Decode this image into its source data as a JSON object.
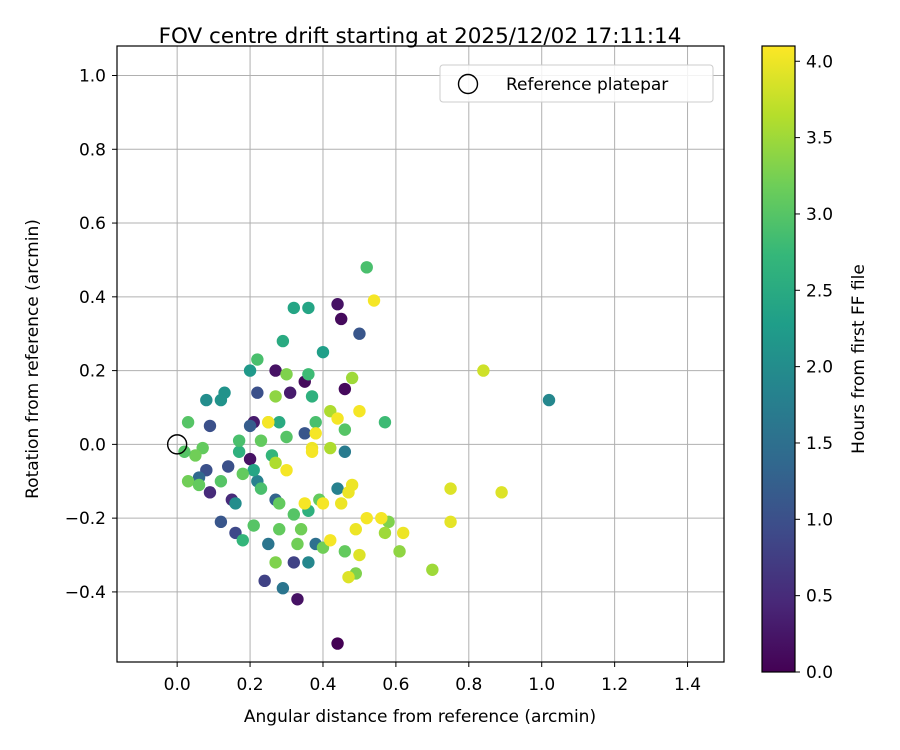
{
  "chart_data": {
    "type": "scatter",
    "title": "FOV centre drift starting at 2025/12/02 17:11:14",
    "xlabel": "Angular distance from reference (arcmin)",
    "ylabel": "Rotation from reference (arcmin)",
    "xlim": [
      -0.165,
      1.5
    ],
    "ylim": [
      -0.59,
      1.08
    ],
    "xticks": [
      0.0,
      0.2,
      0.4,
      0.6,
      0.8,
      1.0,
      1.2,
      1.4
    ],
    "yticks": [
      -0.4,
      -0.2,
      0.0,
      0.2,
      0.4,
      0.6,
      0.8,
      1.0
    ],
    "xtick_labels": [
      "0.0",
      "0.2",
      "0.4",
      "0.6",
      "0.8",
      "1.0",
      "1.2",
      "1.4"
    ],
    "ytick_labels": [
      "−0.4",
      "−0.2",
      "0.0",
      "0.2",
      "0.4",
      "0.6",
      "0.8",
      "1.0"
    ],
    "grid": true,
    "legend": {
      "position": "top-right",
      "entries": [
        "Reference platepar"
      ]
    },
    "reference_point": {
      "x": 0.0,
      "y": 0.0
    },
    "colorbar": {
      "label": "Hours from first FF file",
      "colormap": "viridis",
      "range": [
        0.0,
        4.1
      ],
      "ticks": [
        0.0,
        0.5,
        1.0,
        1.5,
        2.0,
        2.5,
        3.0,
        3.5,
        4.0
      ],
      "tick_labels": [
        "0.0",
        "0.5",
        "1.0",
        "1.5",
        "2.0",
        "2.5",
        "3.0",
        "3.5",
        "4.0"
      ],
      "stops": [
        "#440154",
        "#482878",
        "#3e4a89",
        "#31688e",
        "#26828e",
        "#1f9e89",
        "#35b779",
        "#6ece58",
        "#b5de2b",
        "#fde725"
      ]
    },
    "points": [
      {
        "x": 0.44,
        "y": -0.54,
        "t": 0.0
      },
      {
        "x": 0.33,
        "y": -0.42,
        "t": 0.2
      },
      {
        "x": 0.44,
        "y": 0.38,
        "t": 0.2
      },
      {
        "x": 0.45,
        "y": 0.34,
        "t": 0.1
      },
      {
        "x": 0.35,
        "y": 0.17,
        "t": 0.1
      },
      {
        "x": 0.46,
        "y": 0.15,
        "t": 0.1
      },
      {
        "x": 0.31,
        "y": 0.14,
        "t": 0.3
      },
      {
        "x": 0.27,
        "y": 0.2,
        "t": 0.2
      },
      {
        "x": 0.21,
        "y": 0.06,
        "t": 0.3
      },
      {
        "x": 0.2,
        "y": -0.04,
        "t": 0.2
      },
      {
        "x": 0.15,
        "y": -0.15,
        "t": 0.5
      },
      {
        "x": 0.09,
        "y": -0.13,
        "t": 0.5
      },
      {
        "x": 0.32,
        "y": -0.32,
        "t": 0.8
      },
      {
        "x": 0.24,
        "y": -0.37,
        "t": 0.8
      },
      {
        "x": 0.16,
        "y": -0.24,
        "t": 0.9
      },
      {
        "x": 0.12,
        "y": -0.21,
        "t": 1.1
      },
      {
        "x": 0.5,
        "y": 0.3,
        "t": 1.1
      },
      {
        "x": 0.22,
        "y": 0.14,
        "t": 1.0
      },
      {
        "x": 0.09,
        "y": 0.05,
        "t": 1.0
      },
      {
        "x": 0.08,
        "y": -0.07,
        "t": 1.0
      },
      {
        "x": 0.14,
        "y": -0.06,
        "t": 1.0
      },
      {
        "x": 0.2,
        "y": 0.05,
        "t": 1.2
      },
      {
        "x": 0.35,
        "y": 0.03,
        "t": 1.1
      },
      {
        "x": 0.27,
        "y": -0.15,
        "t": 1.3
      },
      {
        "x": 0.06,
        "y": -0.09,
        "t": 1.4
      },
      {
        "x": 0.25,
        "y": -0.27,
        "t": 1.6
      },
      {
        "x": 0.29,
        "y": -0.39,
        "t": 1.6
      },
      {
        "x": 0.38,
        "y": -0.27,
        "t": 1.5
      },
      {
        "x": 0.46,
        "y": -0.02,
        "t": 1.7
      },
      {
        "x": 0.44,
        "y": -0.12,
        "t": 1.8
      },
      {
        "x": 1.02,
        "y": 0.12,
        "t": 1.9
      },
      {
        "x": 0.36,
        "y": -0.32,
        "t": 1.9
      },
      {
        "x": 0.22,
        "y": -0.1,
        "t": 1.8
      },
      {
        "x": 0.16,
        "y": -0.16,
        "t": 2.0
      },
      {
        "x": 0.08,
        "y": 0.12,
        "t": 2.0
      },
      {
        "x": 0.13,
        "y": 0.14,
        "t": 2.1
      },
      {
        "x": 0.2,
        "y": 0.2,
        "t": 2.2
      },
      {
        "x": 0.12,
        "y": 0.12,
        "t": 2.1
      },
      {
        "x": 0.32,
        "y": 0.37,
        "t": 2.4
      },
      {
        "x": 0.36,
        "y": 0.37,
        "t": 2.4
      },
      {
        "x": 0.4,
        "y": 0.25,
        "t": 2.3
      },
      {
        "x": 0.29,
        "y": 0.28,
        "t": 2.5
      },
      {
        "x": 0.37,
        "y": 0.13,
        "t": 2.6
      },
      {
        "x": 0.28,
        "y": 0.06,
        "t": 2.5
      },
      {
        "x": 0.21,
        "y": -0.07,
        "t": 2.4
      },
      {
        "x": 0.17,
        "y": -0.02,
        "t": 2.6
      },
      {
        "x": 0.26,
        "y": -0.03,
        "t": 2.7
      },
      {
        "x": 0.36,
        "y": -0.18,
        "t": 2.6
      },
      {
        "x": 0.18,
        "y": -0.26,
        "t": 2.7
      },
      {
        "x": 0.57,
        "y": 0.06,
        "t": 2.8
      },
      {
        "x": 0.52,
        "y": 0.48,
        "t": 2.9
      },
      {
        "x": 0.22,
        "y": 0.23,
        "t": 2.9
      },
      {
        "x": 0.36,
        "y": 0.19,
        "t": 2.8
      },
      {
        "x": 0.38,
        "y": 0.06,
        "t": 2.9
      },
      {
        "x": 0.46,
        "y": 0.04,
        "t": 3.0
      },
      {
        "x": 0.3,
        "y": 0.02,
        "t": 3.0
      },
      {
        "x": 0.23,
        "y": 0.01,
        "t": 3.1
      },
      {
        "x": 0.17,
        "y": 0.01,
        "t": 2.9
      },
      {
        "x": 0.03,
        "y": 0.06,
        "t": 3.0
      },
      {
        "x": 0.07,
        "y": -0.01,
        "t": 3.1
      },
      {
        "x": 0.05,
        "y": -0.03,
        "t": 3.2
      },
      {
        "x": 0.02,
        "y": -0.02,
        "t": 3.0
      },
      {
        "x": 0.03,
        "y": -0.1,
        "t": 3.2
      },
      {
        "x": 0.06,
        "y": -0.11,
        "t": 3.1
      },
      {
        "x": 0.12,
        "y": -0.1,
        "t": 3.0
      },
      {
        "x": 0.18,
        "y": -0.08,
        "t": 3.1
      },
      {
        "x": 0.23,
        "y": -0.12,
        "t": 2.9
      },
      {
        "x": 0.28,
        "y": -0.16,
        "t": 3.1
      },
      {
        "x": 0.32,
        "y": -0.19,
        "t": 3.0
      },
      {
        "x": 0.39,
        "y": -0.15,
        "t": 3.1
      },
      {
        "x": 0.21,
        "y": -0.22,
        "t": 3.0
      },
      {
        "x": 0.28,
        "y": -0.23,
        "t": 3.1
      },
      {
        "x": 0.34,
        "y": -0.23,
        "t": 3.2
      },
      {
        "x": 0.33,
        "y": -0.27,
        "t": 3.2
      },
      {
        "x": 0.27,
        "y": -0.32,
        "t": 3.3
      },
      {
        "x": 0.4,
        "y": -0.28,
        "t": 3.2
      },
      {
        "x": 0.46,
        "y": -0.29,
        "t": 3.1
      },
      {
        "x": 0.49,
        "y": -0.35,
        "t": 3.3
      },
      {
        "x": 0.58,
        "y": -0.21,
        "t": 3.3
      },
      {
        "x": 0.61,
        "y": -0.29,
        "t": 3.4
      },
      {
        "x": 0.57,
        "y": -0.24,
        "t": 3.5
      },
      {
        "x": 0.7,
        "y": -0.34,
        "t": 3.5
      },
      {
        "x": 0.48,
        "y": 0.18,
        "t": 3.5
      },
      {
        "x": 0.42,
        "y": 0.09,
        "t": 3.6
      },
      {
        "x": 0.42,
        "y": -0.01,
        "t": 3.6
      },
      {
        "x": 0.27,
        "y": -0.05,
        "t": 3.6
      },
      {
        "x": 0.27,
        "y": 0.13,
        "t": 3.4
      },
      {
        "x": 0.3,
        "y": 0.19,
        "t": 3.3
      },
      {
        "x": 0.25,
        "y": 0.06,
        "t": 3.4
      },
      {
        "x": 0.84,
        "y": 0.2,
        "t": 3.8
      },
      {
        "x": 0.89,
        "y": -0.13,
        "t": 3.9
      },
      {
        "x": 0.75,
        "y": -0.12,
        "t": 3.9
      },
      {
        "x": 0.47,
        "y": -0.36,
        "t": 3.9
      },
      {
        "x": 0.54,
        "y": 0.39,
        "t": 4.05
      },
      {
        "x": 0.5,
        "y": 0.09,
        "t": 4.05
      },
      {
        "x": 0.44,
        "y": 0.07,
        "t": 4.05
      },
      {
        "x": 0.38,
        "y": 0.03,
        "t": 4.05
      },
      {
        "x": 0.37,
        "y": -0.01,
        "t": 4.0
      },
      {
        "x": 0.37,
        "y": -0.02,
        "t": 4.05
      },
      {
        "x": 0.25,
        "y": 0.06,
        "t": 4.05
      },
      {
        "x": 0.3,
        "y": -0.07,
        "t": 4.05
      },
      {
        "x": 0.35,
        "y": -0.16,
        "t": 4.05
      },
      {
        "x": 0.4,
        "y": -0.16,
        "t": 4.05
      },
      {
        "x": 0.45,
        "y": -0.16,
        "t": 4.0
      },
      {
        "x": 0.48,
        "y": -0.11,
        "t": 4.0
      },
      {
        "x": 0.47,
        "y": -0.13,
        "t": 4.0
      },
      {
        "x": 0.52,
        "y": -0.2,
        "t": 4.05
      },
      {
        "x": 0.56,
        "y": -0.2,
        "t": 4.05
      },
      {
        "x": 0.49,
        "y": -0.23,
        "t": 4.0
      },
      {
        "x": 0.42,
        "y": -0.26,
        "t": 4.05
      },
      {
        "x": 0.5,
        "y": -0.3,
        "t": 3.9
      },
      {
        "x": 0.62,
        "y": -0.24,
        "t": 4.0
      },
      {
        "x": 0.75,
        "y": -0.21,
        "t": 3.95
      }
    ]
  }
}
